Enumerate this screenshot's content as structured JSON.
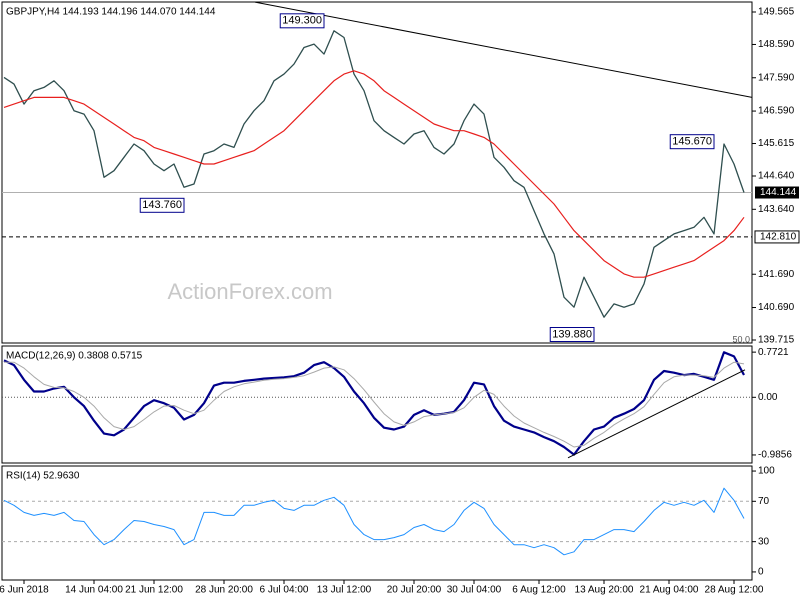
{
  "chart_data": [
    {
      "type": "line",
      "title": "GBPJPY,H4  144.193 144.196 144.070 144.144",
      "watermark": "ActionForex.com",
      "fib_label": "50.0",
      "x": [
        0,
        1,
        2,
        3,
        4,
        5,
        6,
        7,
        8,
        9,
        10,
        11,
        12,
        13,
        14,
        15,
        16,
        17,
        18,
        19,
        20,
        21,
        22,
        23,
        24,
        25,
        26,
        27,
        28,
        29,
        30,
        31,
        32,
        33,
        34,
        35,
        36,
        37,
        38,
        39,
        40,
        41,
        42,
        43,
        44,
        45,
        46,
        47,
        48,
        49,
        50,
        51,
        52,
        53,
        54,
        55,
        56,
        57,
        58,
        59,
        60,
        61,
        62,
        63,
        64,
        65,
        66,
        67,
        68,
        69,
        70,
        71,
        72,
        73,
        74
      ],
      "xlim": [
        -0.2,
        74.8
      ],
      "ylim": [
        139.625,
        149.865
      ],
      "yticks": [
        149.565,
        {
          "value": 148.59,
          "label": "148.590"
        },
        {
          "value": 147.59,
          "label": "147.590"
        },
        {
          "value": 146.59,
          "label": "146.590"
        },
        145.615,
        {
          "value": 144.64,
          "label": "144.640"
        },
        {
          "value": 143.64,
          "label": "143.640"
        },
        {
          "value": 141.69,
          "label": "141.690"
        },
        {
          "value": 140.69,
          "label": "140.690"
        },
        139.715
      ],
      "series": [
        {
          "color": "#2f4f4f",
          "width": 1.3,
          "values": [
            147.6,
            147.4,
            146.8,
            147.2,
            147.3,
            147.5,
            147.2,
            146.6,
            146.5,
            146.0,
            144.6,
            144.8,
            145.2,
            145.6,
            145.4,
            145.0,
            144.8,
            145.0,
            144.3,
            144.4,
            145.3,
            145.4,
            145.6,
            145.5,
            146.2,
            146.6,
            146.9,
            147.5,
            147.7,
            148.0,
            148.5,
            148.6,
            148.3,
            149.0,
            148.8,
            147.7,
            147.2,
            146.3,
            146.0,
            145.8,
            145.6,
            145.9,
            146.0,
            145.5,
            145.3,
            145.6,
            146.3,
            146.8,
            146.5,
            145.2,
            144.9,
            144.5,
            144.3,
            143.6,
            142.9,
            142.3,
            141.0,
            140.7,
            141.6,
            141.0,
            140.4,
            140.8,
            140.7,
            140.8,
            141.4,
            142.5,
            142.7,
            142.9,
            143.0,
            143.1,
            143.4,
            142.9,
            145.6,
            145.0,
            144.144
          ]
        },
        {
          "color": "#e8201e",
          "width": 1.2,
          "values": [
            146.7,
            146.8,
            146.9,
            147.0,
            147.0,
            147.0,
            147.0,
            146.9,
            146.8,
            146.6,
            146.4,
            146.2,
            146.0,
            145.8,
            145.7,
            145.5,
            145.4,
            145.3,
            145.2,
            145.1,
            145.0,
            145.0,
            145.1,
            145.2,
            145.3,
            145.4,
            145.6,
            145.8,
            146.0,
            146.3,
            146.6,
            146.9,
            147.2,
            147.5,
            147.7,
            147.8,
            147.7,
            147.5,
            147.2,
            147.0,
            146.8,
            146.6,
            146.4,
            146.2,
            146.1,
            146.0,
            146.0,
            145.9,
            145.8,
            145.6,
            145.3,
            145.0,
            144.7,
            144.4,
            144.1,
            143.8,
            143.4,
            143.0,
            142.7,
            142.4,
            142.1,
            141.9,
            141.7,
            141.6,
            141.6,
            141.7,
            141.8,
            141.9,
            142.0,
            142.1,
            142.3,
            142.5,
            142.7,
            143.0,
            143.4
          ]
        }
      ],
      "trendline": {
        "x": [
          25.1,
          74.8
        ],
        "values": [
          149.86,
          147.0
        ]
      },
      "annotations": [
        {
          "x": 33,
          "value": 149.3,
          "label": "149.300"
        },
        {
          "x": 19,
          "value": 143.76,
          "label": "143.760"
        },
        {
          "x": 72,
          "value": 145.67,
          "label": "145.670"
        },
        {
          "x": 60,
          "value": 139.88,
          "label": "139.880"
        }
      ],
      "last": {
        "value": 144.144,
        "label": "144.144"
      },
      "level": {
        "value": 142.81,
        "label": "142.810"
      }
    },
    {
      "type": "line",
      "title": "MACD(12,26,9) 0.3808 0.5715",
      "x": [
        0,
        1,
        2,
        3,
        4,
        5,
        6,
        7,
        8,
        9,
        10,
        11,
        12,
        13,
        14,
        15,
        16,
        17,
        18,
        19,
        20,
        21,
        22,
        23,
        24,
        25,
        26,
        27,
        28,
        29,
        30,
        31,
        32,
        33,
        34,
        35,
        36,
        37,
        38,
        39,
        40,
        41,
        42,
        43,
        44,
        45,
        46,
        47,
        48,
        49,
        50,
        51,
        52,
        53,
        54,
        55,
        56,
        57,
        58,
        59,
        60,
        61,
        62,
        63,
        64,
        65,
        66,
        67,
        68,
        69,
        70,
        71,
        72,
        73,
        74
      ],
      "xlim": [
        -0.2,
        74.8
      ],
      "ylim": [
        -1.123,
        0.877
      ],
      "yticks": [
        0.7721,
        {
          "value": 0,
          "label": "0.00"
        },
        -0.9856
      ],
      "zero_line": true,
      "series": [
        {
          "color": "#00008b",
          "width": 2.2,
          "values": [
            0.63,
            0.55,
            0.3,
            0.1,
            0.1,
            0.15,
            0.18,
            0.0,
            -0.15,
            -0.4,
            -0.62,
            -0.65,
            -0.55,
            -0.35,
            -0.15,
            -0.05,
            -0.1,
            -0.18,
            -0.38,
            -0.3,
            -0.1,
            0.2,
            0.25,
            0.25,
            0.28,
            0.3,
            0.32,
            0.33,
            0.34,
            0.36,
            0.42,
            0.55,
            0.6,
            0.5,
            0.35,
            0.1,
            -0.1,
            -0.35,
            -0.52,
            -0.55,
            -0.5,
            -0.3,
            -0.22,
            -0.3,
            -0.28,
            -0.25,
            -0.05,
            0.25,
            0.22,
            -0.15,
            -0.4,
            -0.5,
            -0.55,
            -0.6,
            -0.68,
            -0.75,
            -0.85,
            -0.98,
            -0.75,
            -0.55,
            -0.5,
            -0.35,
            -0.28,
            -0.2,
            -0.05,
            0.3,
            0.45,
            0.42,
            0.38,
            0.4,
            0.35,
            0.3,
            0.77,
            0.7,
            0.3808
          ]
        },
        {
          "color": "#a9a9a9",
          "width": 1,
          "values": [
            0.6,
            0.6,
            0.5,
            0.35,
            0.22,
            0.17,
            0.16,
            0.1,
            0.0,
            -0.15,
            -0.35,
            -0.5,
            -0.55,
            -0.5,
            -0.38,
            -0.25,
            -0.15,
            -0.14,
            -0.22,
            -0.28,
            -0.22,
            -0.05,
            0.1,
            0.18,
            0.23,
            0.26,
            0.29,
            0.31,
            0.32,
            0.34,
            0.37,
            0.43,
            0.5,
            0.52,
            0.47,
            0.32,
            0.13,
            -0.08,
            -0.28,
            -0.42,
            -0.48,
            -0.42,
            -0.33,
            -0.3,
            -0.28,
            -0.26,
            -0.18,
            0.0,
            0.12,
            0.05,
            -0.15,
            -0.32,
            -0.44,
            -0.52,
            -0.6,
            -0.67,
            -0.75,
            -0.85,
            -0.82,
            -0.7,
            -0.6,
            -0.47,
            -0.37,
            -0.28,
            -0.16,
            0.05,
            0.25,
            0.35,
            0.38,
            0.38,
            0.37,
            0.34,
            0.5,
            0.6,
            0.5715
          ]
        }
      ],
      "trendline": {
        "x": [
          56.4,
          74.1
        ],
        "values": [
          -1.035,
          0.47
        ]
      }
    },
    {
      "type": "line",
      "title": "RSI(14) 52.9630",
      "x": [
        0,
        1,
        2,
        3,
        4,
        5,
        6,
        7,
        8,
        9,
        10,
        11,
        12,
        13,
        14,
        15,
        16,
        17,
        18,
        19,
        20,
        21,
        22,
        23,
        24,
        25,
        26,
        27,
        28,
        29,
        30,
        31,
        32,
        33,
        34,
        35,
        36,
        37,
        38,
        39,
        40,
        41,
        42,
        43,
        44,
        45,
        46,
        47,
        48,
        49,
        50,
        51,
        52,
        53,
        54,
        55,
        56,
        57,
        58,
        59,
        60,
        61,
        62,
        63,
        64,
        65,
        66,
        67,
        68,
        69,
        70,
        71,
        72,
        73,
        74
      ],
      "xlim": [
        -0.2,
        74.8
      ],
      "xticks": [
        {
          "value": 2,
          "label": "6 Jun 2018"
        },
        {
          "value": 9,
          "label": "14 Jun 04:00"
        },
        {
          "value": 15,
          "label": "21 Jun 12:00"
        },
        {
          "value": 22,
          "label": "28 Jun 20:00"
        },
        {
          "value": 28,
          "label": "6 Jul 04:00"
        },
        {
          "value": 34,
          "label": "13 Jul 12:00"
        },
        {
          "value": 41,
          "label": "20 Jul 20:00"
        },
        {
          "value": 47,
          "label": "30 Jul 04:00"
        },
        {
          "value": 53.5,
          "label": "6 Aug 12:00"
        },
        {
          "value": 60,
          "label": "13 Aug 20:00"
        },
        {
          "value": 66.5,
          "label": "21 Aug 04:00"
        },
        {
          "value": 73,
          "label": "28 Aug 12:00"
        }
      ],
      "ylim": [
        -8,
        105
      ],
      "yticks": [
        100,
        70,
        30,
        0
      ],
      "levels": [
        70,
        30
      ],
      "series": [
        {
          "color": "#1e90ff",
          "width": 1,
          "values": [
            71,
            66,
            59,
            56,
            58,
            56,
            59,
            51,
            50,
            37,
            27,
            32,
            42,
            51,
            50,
            47,
            45,
            42,
            27,
            32,
            59,
            59,
            56,
            56,
            66,
            66,
            69,
            71,
            63,
            61,
            66,
            66,
            71,
            74,
            66,
            47,
            37,
            32,
            32,
            34,
            37,
            44,
            47,
            42,
            40,
            47,
            61,
            69,
            63,
            47,
            37,
            27,
            27,
            24,
            27,
            24,
            17,
            20,
            32,
            32,
            37,
            42,
            42,
            40,
            50,
            61,
            69,
            66,
            69,
            66,
            71,
            59,
            83,
            71,
            52.963
          ]
        }
      ]
    }
  ]
}
